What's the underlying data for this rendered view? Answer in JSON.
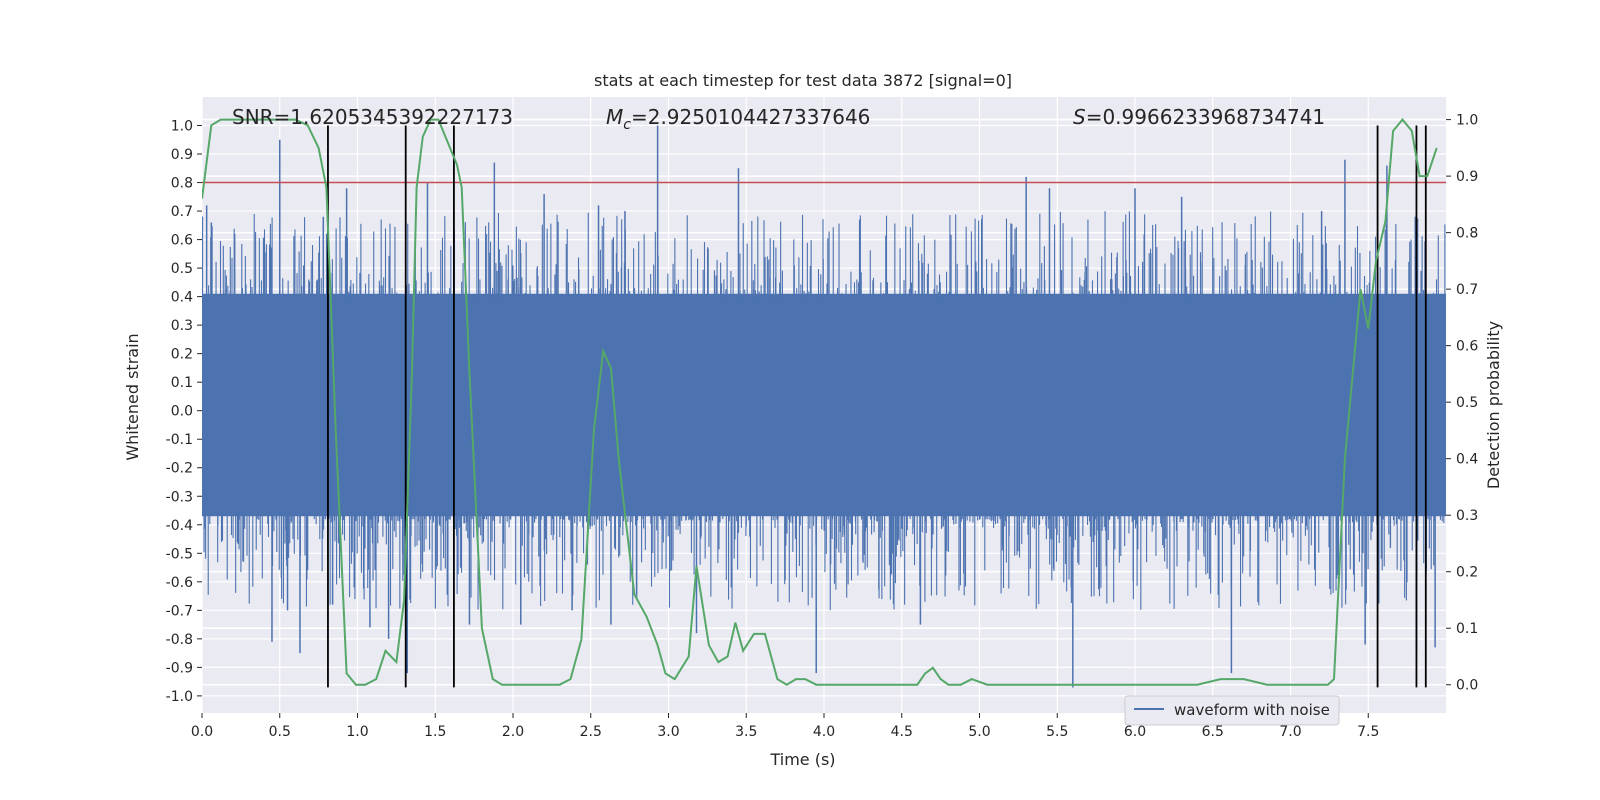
{
  "chart_data": {
    "type": "line",
    "title": "stats at each timestep for test data 3872 [signal=0]",
    "xlabel": "Time (s)",
    "ylabel_left": "Whitened strain",
    "ylabel_right": "Detection probability",
    "xlim": [
      0.0,
      8.0
    ],
    "ylim_left": [
      -1.06,
      1.1
    ],
    "ylim_right": [
      -0.05,
      1.04
    ],
    "x_ticks": [
      0.0,
      0.5,
      1.0,
      1.5,
      2.0,
      2.5,
      3.0,
      3.5,
      4.0,
      4.5,
      5.0,
      5.5,
      6.0,
      6.5,
      7.0,
      7.5
    ],
    "x_tick_labels": [
      "0.0",
      "0.5",
      "1.0",
      "1.5",
      "2.0",
      "2.5",
      "3.0",
      "3.5",
      "4.0",
      "4.5",
      "5.0",
      "5.5",
      "6.0",
      "6.5",
      "7.0",
      "7.5"
    ],
    "y_left_ticks": [
      -1.0,
      -0.9,
      -0.8,
      -0.7,
      -0.6,
      -0.5,
      -0.4,
      -0.3,
      -0.2,
      -0.1,
      0.0,
      0.1,
      0.2,
      0.3,
      0.4,
      0.5,
      0.6,
      0.7,
      0.8,
      0.9,
      1.0
    ],
    "y_left_tick_labels": [
      "-1.0",
      "-0.9",
      "-0.8",
      "-0.7",
      "-0.6",
      "-0.5",
      "-0.4",
      "-0.3",
      "-0.2",
      "-0.1",
      "0.0",
      "0.1",
      "0.2",
      "0.3",
      "0.4",
      "0.5",
      "0.6",
      "0.7",
      "0.8",
      "0.9",
      "1.0"
    ],
    "y_right_ticks": [
      0.0,
      0.1,
      0.2,
      0.3,
      0.4,
      0.5,
      0.6,
      0.7,
      0.8,
      0.9,
      1.0
    ],
    "y_right_tick_labels": [
      "0.0",
      "0.1",
      "0.2",
      "0.3",
      "0.4",
      "0.5",
      "0.6",
      "0.7",
      "0.8",
      "0.9",
      "1.0"
    ],
    "grid": true,
    "legend": {
      "placement": "lower right",
      "entries": [
        "waveform with noise"
      ]
    },
    "annotations": {
      "snr": "SNR=1.6205345392227173",
      "mc_symbol": "M",
      "mc_subscript": "c",
      "mc_value": "=2.9250104427337646",
      "s_symbol": "S",
      "s_value": "=0.9966233968734741"
    },
    "threshold": {
      "value": 0.8,
      "axis": "left",
      "color": "#c44e52"
    },
    "detection_marks": {
      "x": [
        0.81,
        1.31,
        1.62,
        7.56,
        7.81,
        7.87
      ],
      "color": "#000000"
    },
    "series": [
      {
        "name": "waveform with noise",
        "axis": "left",
        "color": "#4c72b0",
        "style": "dense noise trace",
        "core_band": [
          -0.37,
          0.41
        ],
        "x": [
          0.03,
          0.06,
          0.21,
          0.45,
          0.5,
          0.55,
          0.63,
          0.78,
          0.84,
          0.93,
          1.08,
          1.2,
          1.32,
          1.45,
          1.72,
          1.88,
          2.05,
          2.2,
          2.38,
          2.55,
          2.63,
          2.72,
          2.93,
          3.18,
          3.45,
          3.95,
          4.62,
          5.3,
          5.45,
          5.6,
          6.0,
          6.3,
          6.62,
          7.2,
          7.35,
          7.48,
          7.62,
          7.81,
          7.93
        ],
        "values": [
          0.72,
          0.66,
          0.62,
          -0.81,
          0.95,
          -0.7,
          -0.85,
          0.68,
          -0.68,
          0.78,
          -0.76,
          -0.8,
          -0.92,
          0.8,
          -0.75,
          0.87,
          -0.75,
          0.76,
          -0.7,
          0.72,
          -0.75,
          0.7,
          1.0,
          -0.78,
          0.85,
          -0.92,
          -0.75,
          0.82,
          0.78,
          -0.97,
          0.78,
          0.75,
          -0.92,
          0.7,
          0.88,
          -0.82,
          0.86,
          -0.85,
          -0.83
        ]
      },
      {
        "name": "",
        "axis": "right",
        "color": "#55a868",
        "x": [
          0.0,
          0.06,
          0.12,
          0.2,
          0.3,
          0.4,
          0.5,
          0.6,
          0.68,
          0.75,
          0.8,
          0.86,
          0.93,
          0.99,
          1.05,
          1.12,
          1.18,
          1.25,
          1.3,
          1.35,
          1.38,
          1.42,
          1.47,
          1.52,
          1.58,
          1.64,
          1.67,
          1.72,
          1.8,
          1.87,
          1.93,
          2.0,
          2.1,
          2.2,
          2.3,
          2.37,
          2.44,
          2.52,
          2.58,
          2.63,
          2.68,
          2.78,
          2.86,
          2.93,
          2.98,
          3.04,
          3.13,
          3.18,
          3.26,
          3.32,
          3.38,
          3.43,
          3.48,
          3.55,
          3.62,
          3.7,
          3.76,
          3.82,
          3.88,
          3.95,
          4.05,
          4.2,
          4.35,
          4.5,
          4.6,
          4.65,
          4.7,
          4.75,
          4.8,
          4.88,
          4.95,
          5.05,
          5.2,
          5.4,
          5.6,
          5.8,
          6.0,
          6.2,
          6.4,
          6.55,
          6.7,
          6.85,
          7.0,
          7.15,
          7.24,
          7.28,
          7.35,
          7.45,
          7.5,
          7.55,
          7.61,
          7.66,
          7.72,
          7.78,
          7.83,
          7.88,
          7.94
        ],
        "values": [
          0.86,
          0.99,
          1.0,
          1.0,
          1.0,
          1.0,
          1.0,
          1.0,
          0.99,
          0.95,
          0.88,
          0.45,
          0.02,
          0.0,
          0.0,
          0.01,
          0.06,
          0.04,
          0.15,
          0.55,
          0.88,
          0.97,
          1.0,
          1.0,
          0.96,
          0.92,
          0.88,
          0.55,
          0.1,
          0.01,
          0.0,
          0.0,
          0.0,
          0.0,
          0.0,
          0.01,
          0.08,
          0.45,
          0.59,
          0.56,
          0.4,
          0.16,
          0.12,
          0.07,
          0.02,
          0.01,
          0.05,
          0.21,
          0.07,
          0.04,
          0.05,
          0.11,
          0.06,
          0.09,
          0.09,
          0.01,
          0.0,
          0.01,
          0.01,
          0.0,
          0.0,
          0.0,
          0.0,
          0.0,
          0.0,
          0.02,
          0.03,
          0.01,
          0.0,
          0.0,
          0.01,
          0.0,
          0.0,
          0.0,
          0.0,
          0.0,
          0.0,
          0.0,
          0.0,
          0.01,
          0.01,
          0.0,
          0.0,
          0.0,
          0.0,
          0.01,
          0.4,
          0.7,
          0.63,
          0.75,
          0.82,
          0.98,
          1.0,
          0.98,
          0.9,
          0.9,
          0.95
        ]
      }
    ]
  }
}
